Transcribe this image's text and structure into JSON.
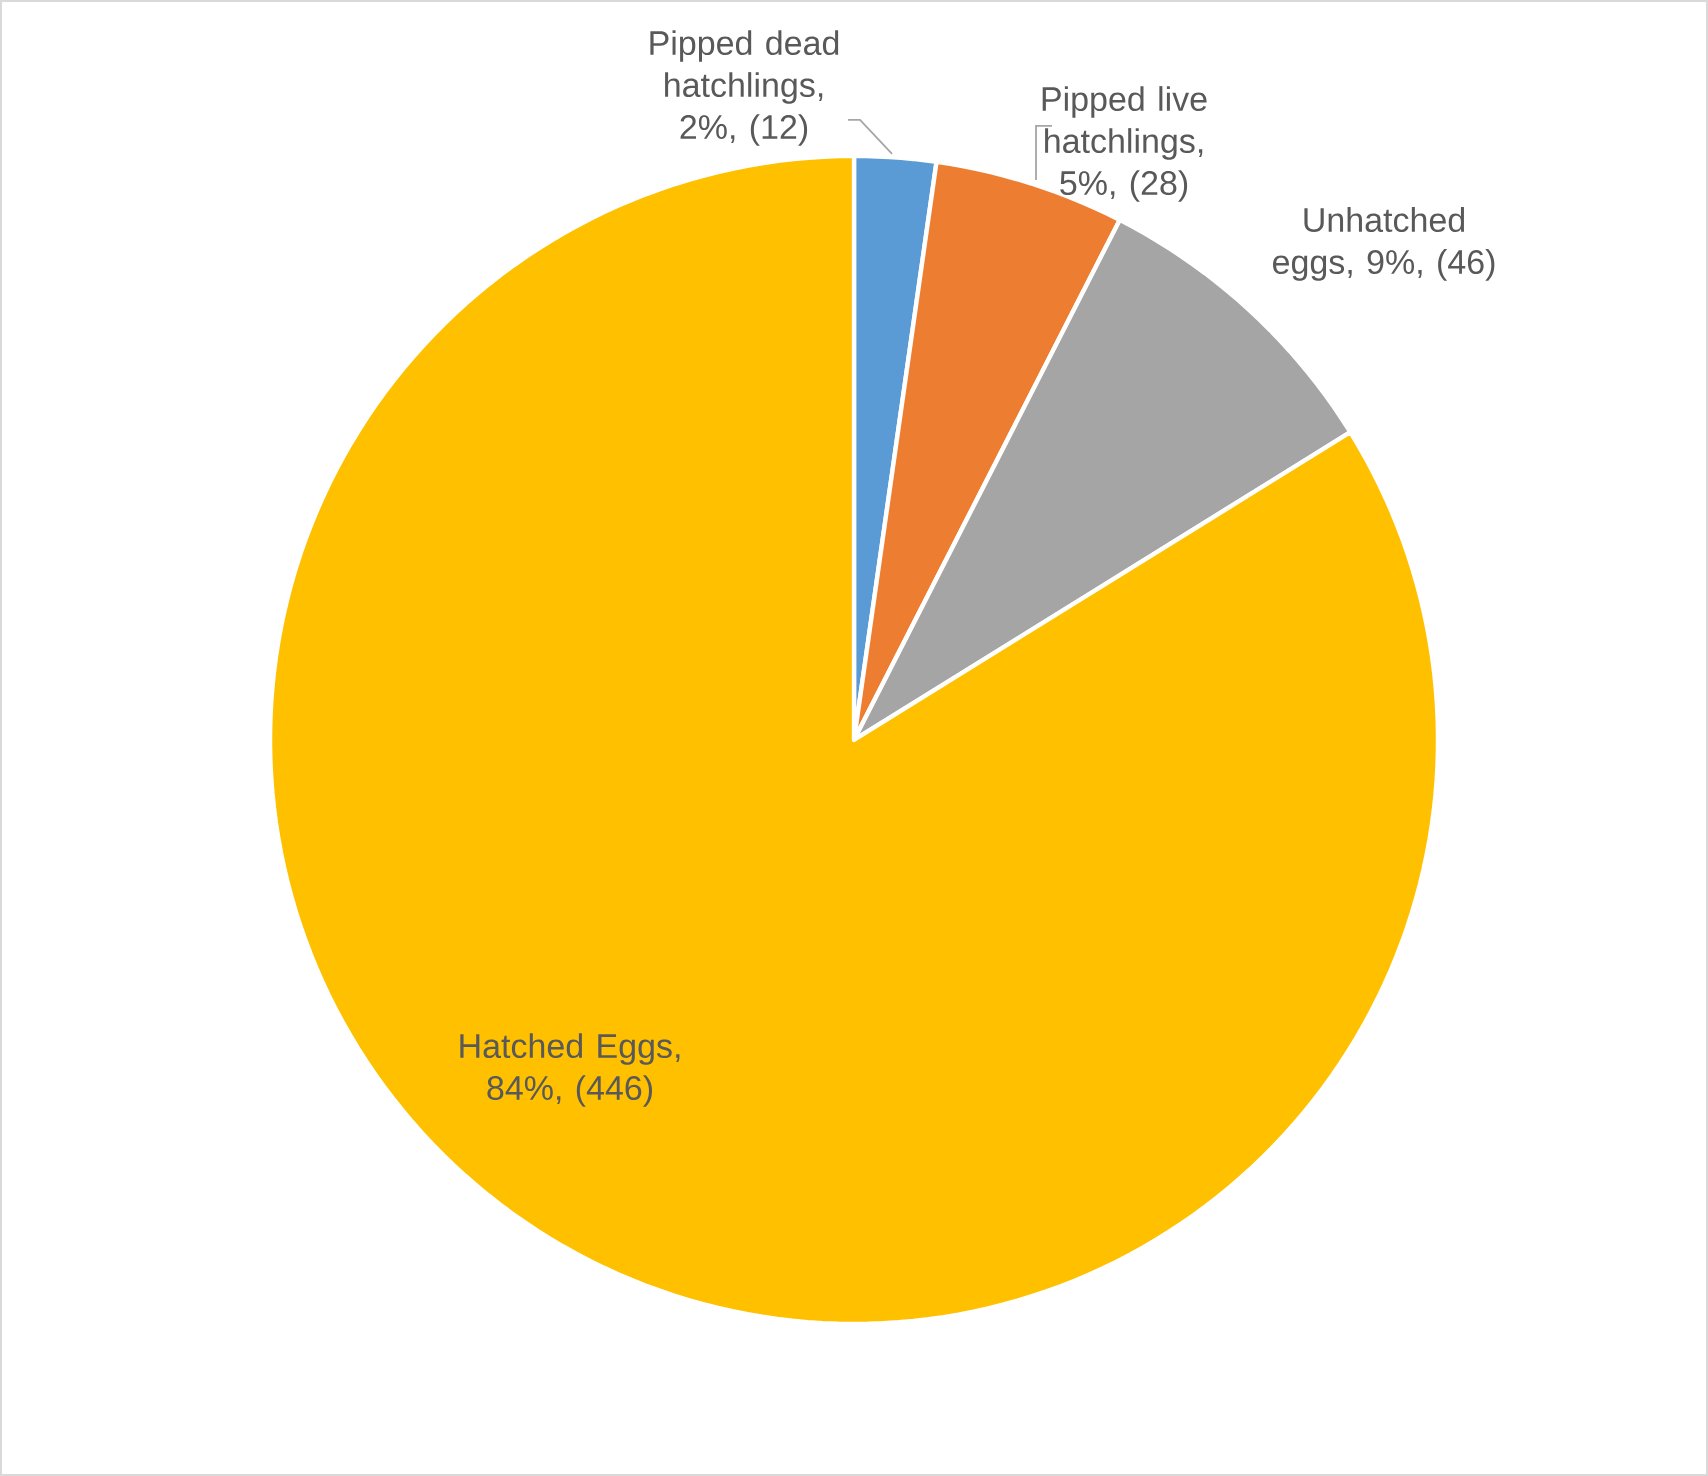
{
  "chart_data": {
    "type": "pie",
    "categories": [
      "Pipped dead hatchlings",
      "Pipped live hatchlings",
      "Unhatched eggs",
      "Hatched Eggs"
    ],
    "values": [
      12,
      28,
      46,
      446
    ],
    "value_labels": [
      ", 2%, (12)",
      ", 5%, (28)",
      ", 9%, (46)",
      ", 84%, (446)"
    ],
    "colors": [
      "#5b9bd5",
      "#ed7d31",
      "#a5a5a5",
      "#ffc000"
    ],
    "legend": false
  }
}
